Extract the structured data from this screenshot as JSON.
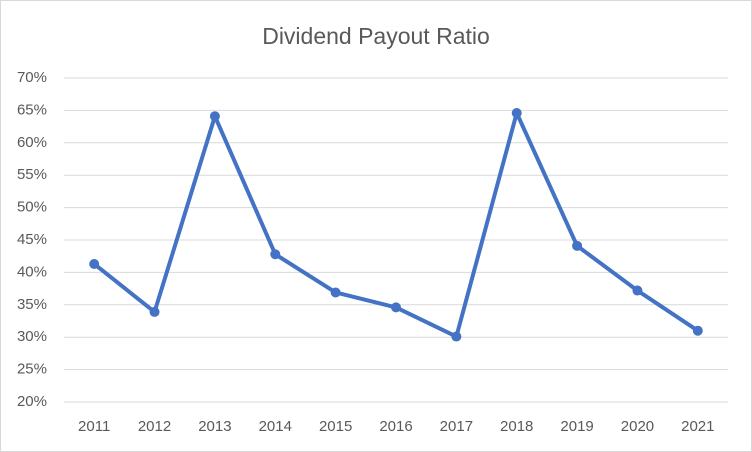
{
  "chart_data": {
    "type": "line",
    "title": "Dividend Payout Ratio",
    "categories": [
      "2011",
      "2012",
      "2013",
      "2014",
      "2015",
      "2016",
      "2017",
      "2018",
      "2019",
      "2020",
      "2021"
    ],
    "values": [
      41.3,
      33.9,
      64.1,
      42.8,
      36.9,
      34.6,
      30.1,
      64.6,
      44.1,
      37.2,
      31.0
    ],
    "color": "#4472c4",
    "ylim": [
      20,
      70
    ],
    "yticks": [
      {
        "value": 20,
        "label": "20%"
      },
      {
        "value": 25,
        "label": "25%"
      },
      {
        "value": 30,
        "label": "30%"
      },
      {
        "value": 35,
        "label": "35%"
      },
      {
        "value": 40,
        "label": "40%"
      },
      {
        "value": 45,
        "label": "45%"
      },
      {
        "value": 50,
        "label": "50%"
      },
      {
        "value": 55,
        "label": "55%"
      },
      {
        "value": 60,
        "label": "60%"
      },
      {
        "value": 65,
        "label": "65%"
      },
      {
        "value": 70,
        "label": "70%"
      }
    ],
    "grid": true
  }
}
